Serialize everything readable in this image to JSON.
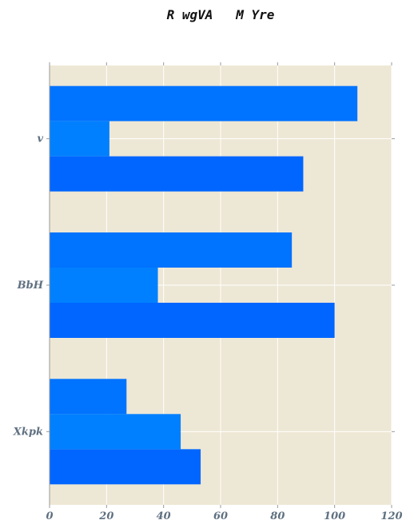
{
  "chart_data": {
    "type": "bar",
    "orientation": "horizontal",
    "title": "R wgVA   M Yre",
    "xlabel": "",
    "ylabel": "",
    "categories": [
      "v",
      "BbH",
      "Xkpk"
    ],
    "series": [
      {
        "values": [
          108,
          85,
          27
        ],
        "color": "#0073ff"
      },
      {
        "values": [
          21,
          38,
          46
        ],
        "color": "#0080ff"
      },
      {
        "values": [
          89,
          100,
          53
        ],
        "color": "#0066ff"
      }
    ],
    "xlim": [
      0,
      120
    ],
    "xticks": [
      0,
      20,
      40,
      60,
      80,
      100,
      120
    ],
    "grid": true,
    "legend": false,
    "background": "#ede7d5",
    "grid_color": "#ffffff"
  }
}
